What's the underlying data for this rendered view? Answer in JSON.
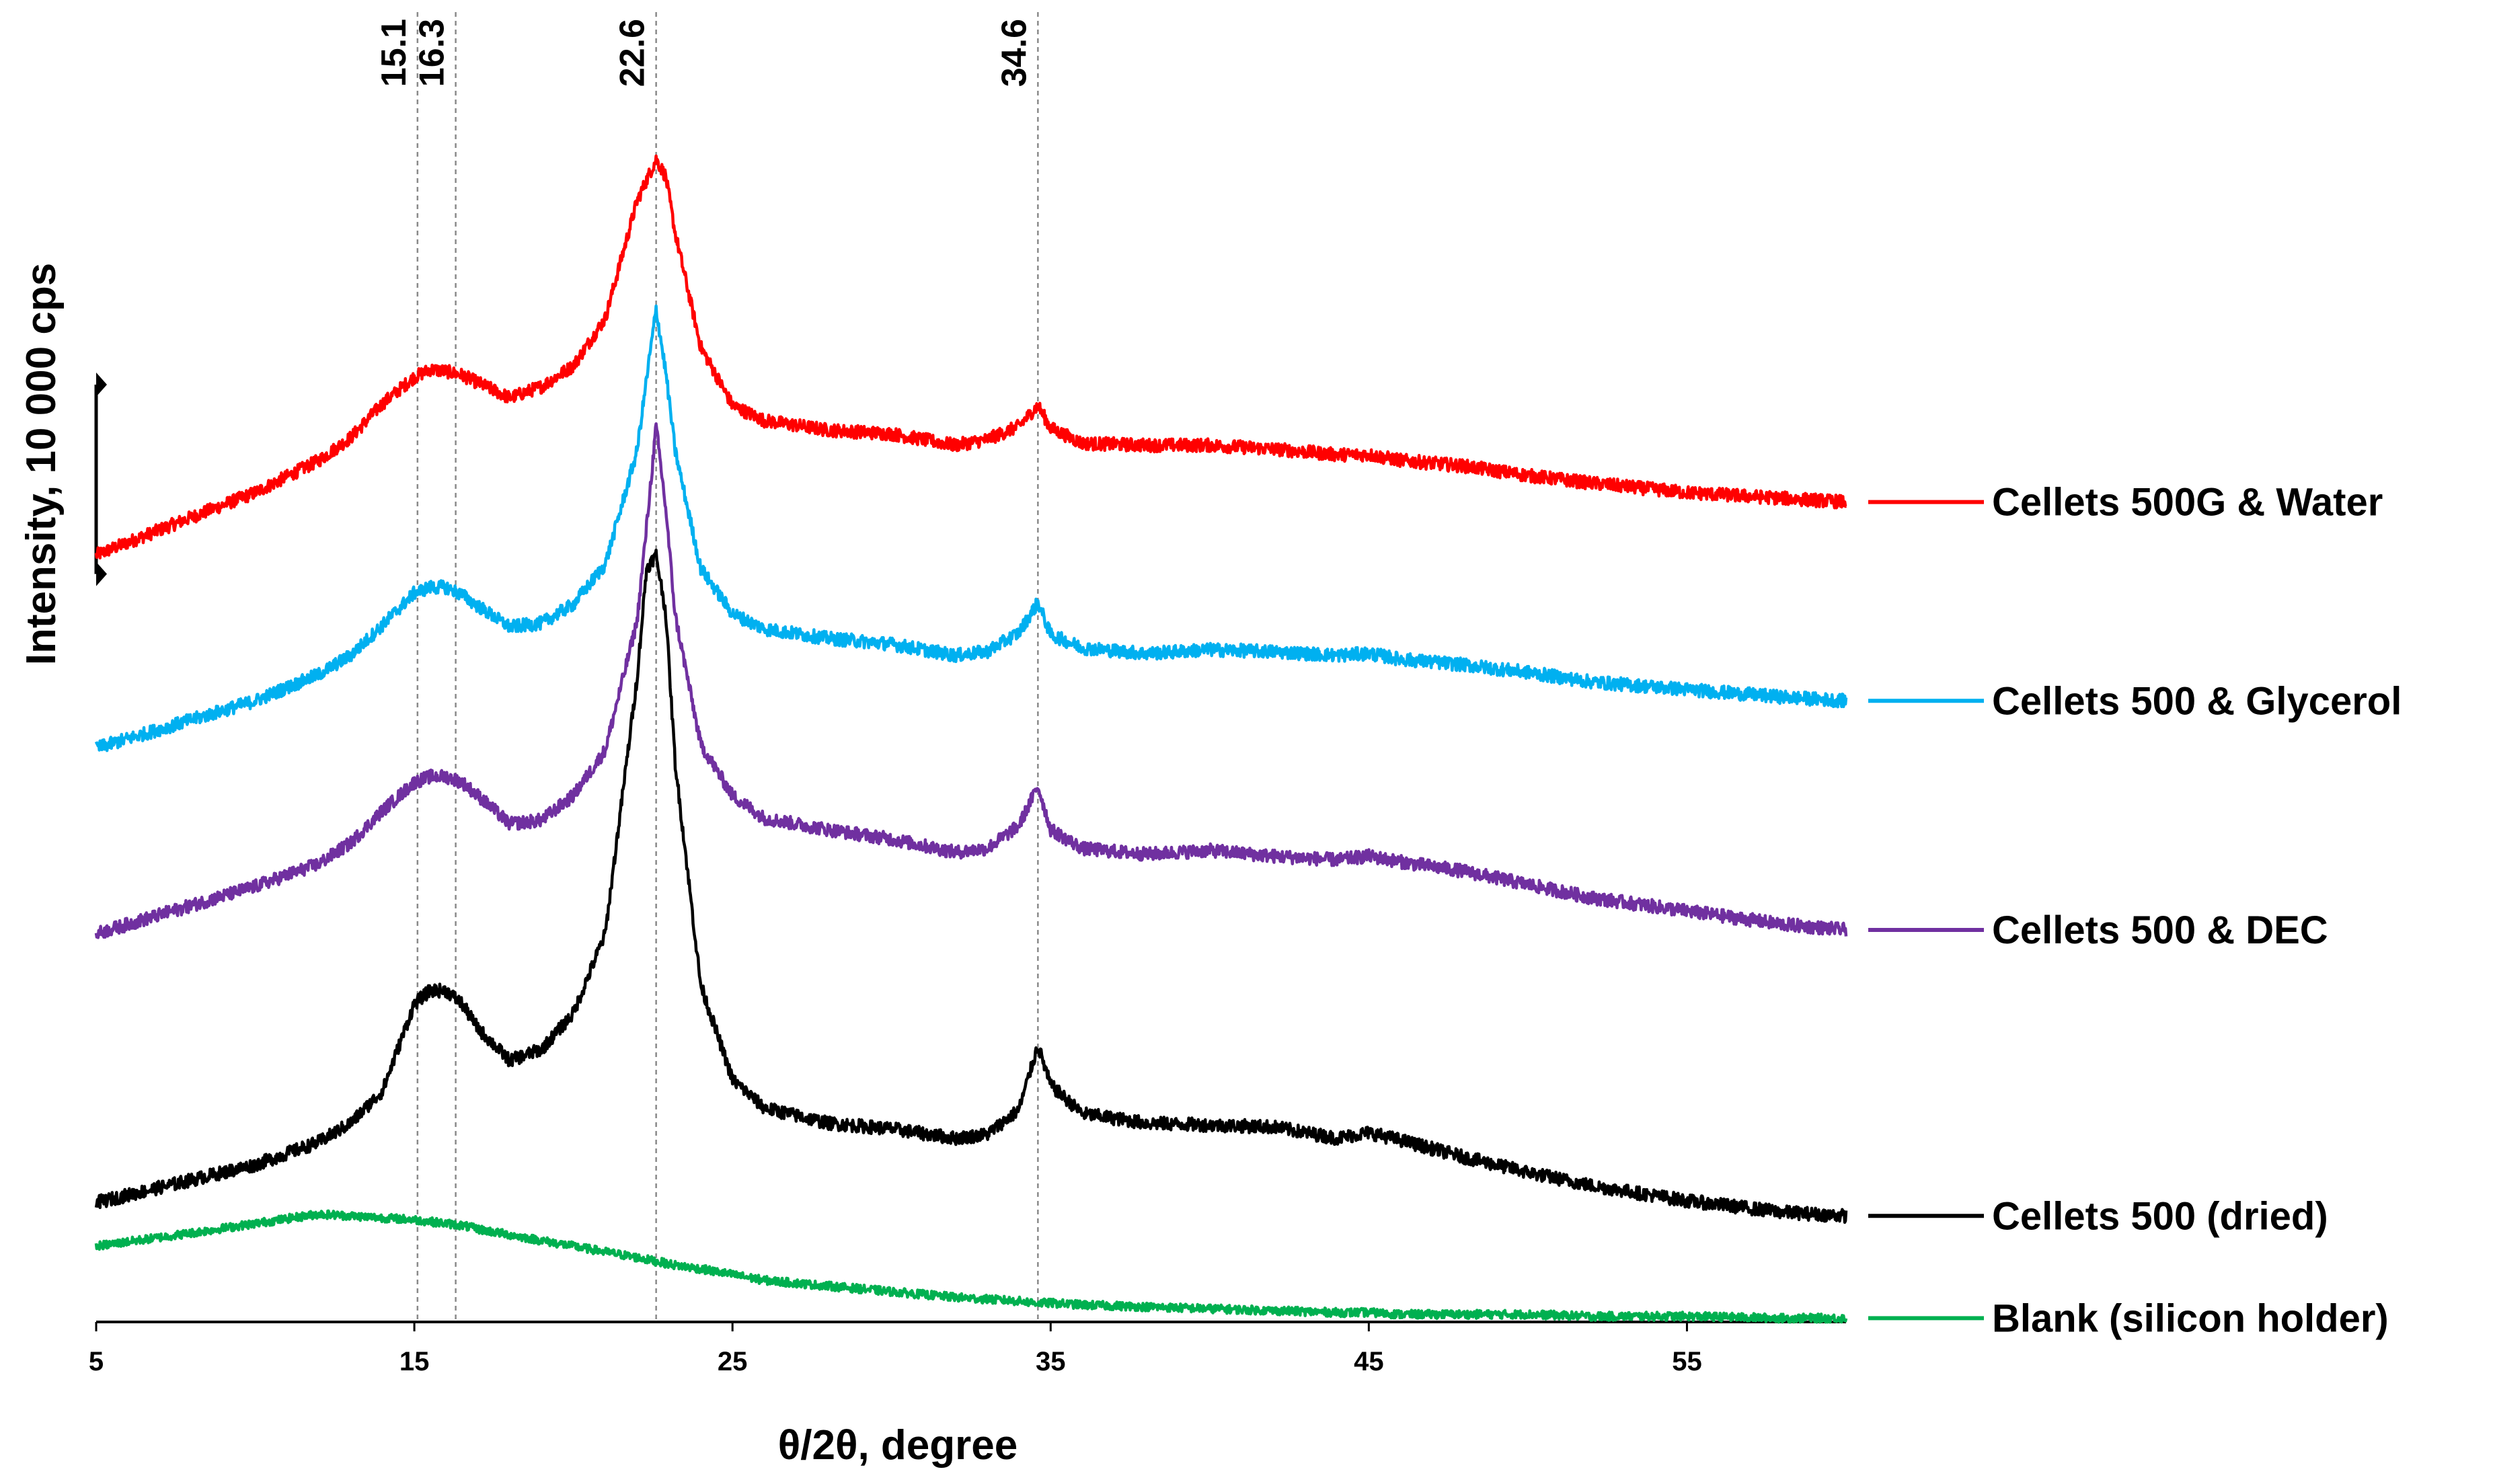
{
  "chart_data": {
    "type": "line",
    "title": "",
    "xlabel": "θ/2θ, degree",
    "ylabel": "Intensity, 10 000 cps",
    "xlim": [
      5,
      60
    ],
    "xticks": [
      5,
      15,
      25,
      35,
      45,
      55
    ],
    "xtick_labels": [
      "5",
      "15",
      "25",
      "35",
      "45",
      "55"
    ],
    "ylim": [
      0,
      6.2
    ],
    "yscale_bar": [
      3.95,
      4.95
    ],
    "grid": false,
    "legend_position": "right",
    "annotations": [
      {
        "label": "15.1",
        "x": 15.1
      },
      {
        "label": "16.3",
        "x": 16.3
      },
      {
        "label": "22.6",
        "x": 22.6
      },
      {
        "label": "34.6",
        "x": 34.6
      }
    ],
    "x": [
      5,
      8,
      10,
      12,
      13,
      14,
      15,
      15.5,
      16,
      16.5,
      17,
      18,
      19,
      20,
      21,
      22,
      22.3,
      22.6,
      22.9,
      23.2,
      24,
      25,
      26,
      28,
      30,
      32,
      33,
      34,
      34.6,
      35,
      36,
      38,
      40,
      42,
      44,
      45,
      46,
      48,
      50,
      52,
      55,
      58,
      60
    ],
    "series": [
      {
        "name": "Cellets 500G & Water",
        "color": "#ff0000",
        "values": [
          4.05,
          4.25,
          4.38,
          4.55,
          4.67,
          4.85,
          4.99,
          5.03,
          5.02,
          5.0,
          4.96,
          4.88,
          4.94,
          5.05,
          5.3,
          5.92,
          6.03,
          6.14,
          6.05,
          5.75,
          5.15,
          4.84,
          4.76,
          4.71,
          4.69,
          4.63,
          4.66,
          4.73,
          4.84,
          4.72,
          4.64,
          4.63,
          4.63,
          4.61,
          4.58,
          4.58,
          4.55,
          4.52,
          4.47,
          4.43,
          4.38,
          4.35,
          4.33
        ]
      },
      {
        "name": "Cellets 500 & Glycerol",
        "color": "#00b0f0",
        "values": [
          3.03,
          3.18,
          3.28,
          3.42,
          3.52,
          3.68,
          3.85,
          3.88,
          3.88,
          3.84,
          3.78,
          3.67,
          3.69,
          3.79,
          4.0,
          4.6,
          4.98,
          5.35,
          5.02,
          4.6,
          3.98,
          3.74,
          3.66,
          3.61,
          3.58,
          3.52,
          3.54,
          3.64,
          3.8,
          3.63,
          3.56,
          3.53,
          3.55,
          3.54,
          3.52,
          3.53,
          3.5,
          3.47,
          3.43,
          3.38,
          3.34,
          3.3,
          3.28
        ]
      },
      {
        "name": "Cellets 500 & DEC",
        "color": "#7030a0",
        "values": [
          2.05,
          2.2,
          2.3,
          2.42,
          2.53,
          2.7,
          2.85,
          2.88,
          2.88,
          2.85,
          2.78,
          2.63,
          2.65,
          2.78,
          3.02,
          3.7,
          4.2,
          4.73,
          4.3,
          3.73,
          3.05,
          2.78,
          2.66,
          2.6,
          2.55,
          2.48,
          2.5,
          2.62,
          2.83,
          2.6,
          2.5,
          2.47,
          2.49,
          2.46,
          2.44,
          2.46,
          2.43,
          2.38,
          2.31,
          2.24,
          2.17,
          2.1,
          2.07
        ]
      },
      {
        "name": "Cellets 500 (dried)",
        "color": "#000000",
        "values": [
          0.63,
          0.75,
          0.83,
          0.95,
          1.05,
          1.22,
          1.68,
          1.75,
          1.75,
          1.68,
          1.55,
          1.38,
          1.44,
          1.63,
          2.05,
          3.4,
          3.98,
          4.05,
          3.75,
          2.95,
          1.78,
          1.28,
          1.13,
          1.05,
          1.02,
          0.97,
          0.99,
          1.12,
          1.46,
          1.25,
          1.1,
          1.05,
          1.04,
          1.03,
          0.97,
          1.0,
          0.96,
          0.87,
          0.79,
          0.72,
          0.64,
          0.58,
          0.56
        ]
      },
      {
        "name": "Blank (silicon holder)",
        "color": "#00b050",
        "values": [
          0.4,
          0.47,
          0.52,
          0.57,
          0.56,
          0.55,
          0.54,
          0.53,
          0.52,
          0.51,
          0.49,
          0.46,
          0.43,
          0.4,
          0.37,
          0.34,
          0.33,
          0.32,
          0.31,
          0.3,
          0.28,
          0.25,
          0.22,
          0.19,
          0.16,
          0.13,
          0.12,
          0.11,
          0.1,
          0.1,
          0.09,
          0.08,
          0.07,
          0.06,
          0.05,
          0.05,
          0.04,
          0.04,
          0.04,
          0.03,
          0.03,
          0.02,
          0.02
        ]
      }
    ]
  }
}
